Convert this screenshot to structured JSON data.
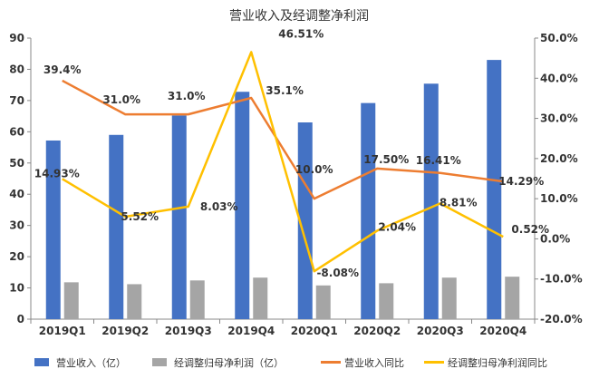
{
  "chart_data": {
    "type": "bar",
    "title": "营业收入及经调整净利润",
    "categories": [
      "2019Q1",
      "2019Q2",
      "2019Q3",
      "2019Q4",
      "2020Q1",
      "2020Q2",
      "2020Q3",
      "2020Q4"
    ],
    "y_left": {
      "min": 0,
      "max": 90,
      "step": 10,
      "ticks": [
        "0",
        "10",
        "20",
        "30",
        "40",
        "50",
        "60",
        "70",
        "80",
        "90"
      ]
    },
    "y_right": {
      "min": -20,
      "max": 50,
      "step": 10,
      "ticks": [
        "-20.0%",
        "-10.0%",
        "0.0%",
        "10.0%",
        "20.0%",
        "30.0%",
        "40.0%",
        "50.0%"
      ]
    },
    "series": [
      {
        "name": "营业收入（亿）",
        "kind": "bar",
        "axis": "left",
        "color": "#4472C4",
        "values": [
          57.2,
          59.0,
          65.2,
          72.8,
          63.0,
          69.2,
          75.4,
          83.0
        ]
      },
      {
        "name": "经调整归母净利润（亿）",
        "kind": "bar",
        "axis": "left",
        "color": "#A5A5A5",
        "values": [
          11.8,
          11.2,
          12.4,
          13.3,
          10.8,
          11.5,
          13.3,
          13.6
        ]
      },
      {
        "name": "营业收入同比",
        "kind": "line",
        "axis": "right",
        "color": "#ED7D31",
        "values": [
          39.4,
          31.0,
          31.0,
          35.1,
          10.0,
          17.5,
          16.41,
          14.29
        ],
        "labels": [
          "39.4%",
          "31.0%",
          "31.0%",
          "35.1%",
          "10.0%",
          "17.50%",
          "16.41%",
          "14.29%"
        ]
      },
      {
        "name": "经调整归母净利润同比",
        "kind": "line",
        "axis": "right",
        "color": "#FFC000",
        "values": [
          14.93,
          5.52,
          8.03,
          46.51,
          -8.08,
          2.04,
          8.81,
          0.52
        ],
        "labels": [
          "14.93%",
          "5.52%",
          "8.03%",
          "46.51%",
          "-8.08%",
          "2.04%",
          "8.81%",
          "0.52%"
        ]
      }
    ],
    "grid": false,
    "legend_position": "bottom"
  }
}
